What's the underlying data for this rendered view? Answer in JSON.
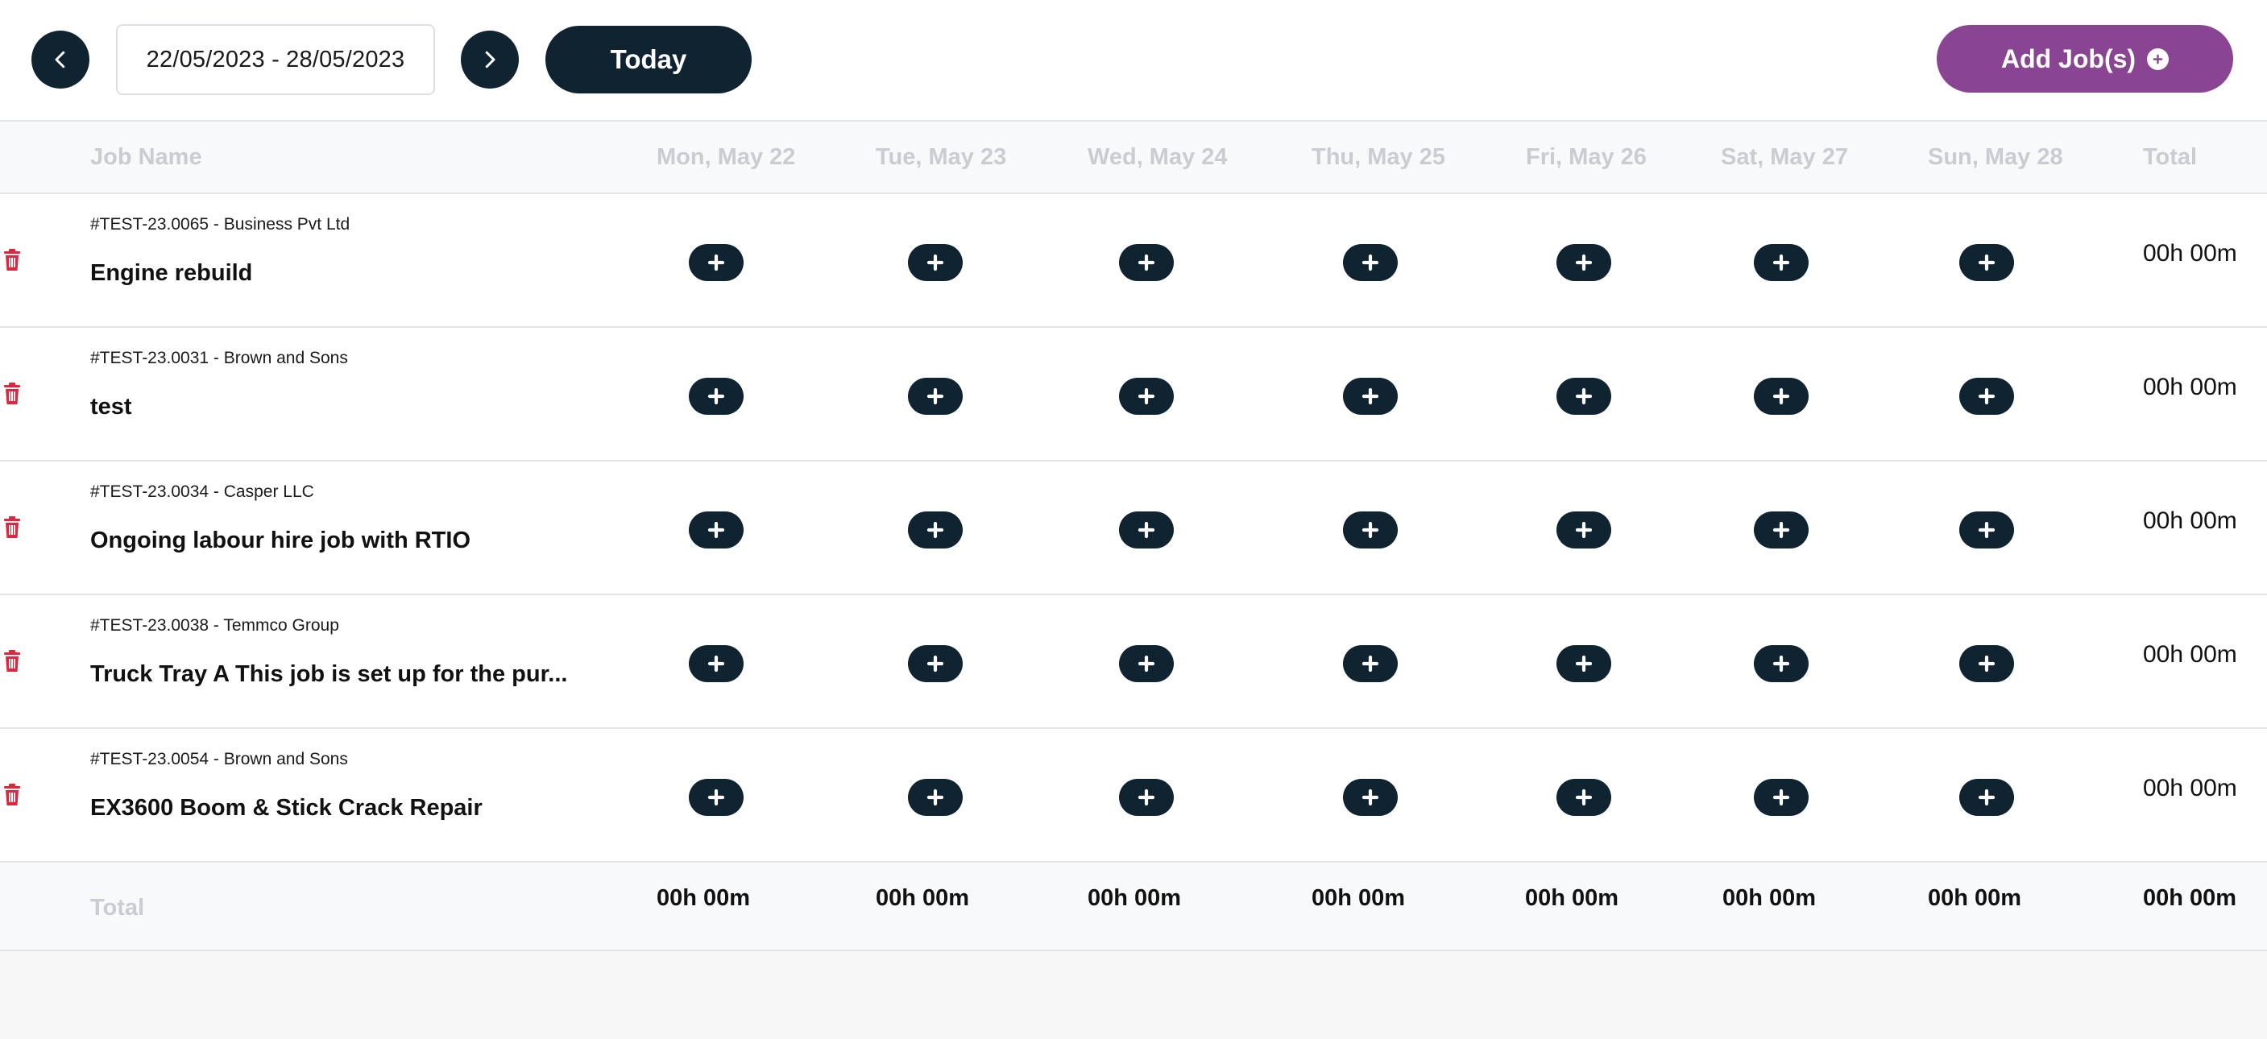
{
  "toolbar": {
    "prev_icon": "chevron-left-icon",
    "next_icon": "chevron-right-icon",
    "date_range": "22/05/2023 - 28/05/2023",
    "today_label": "Today",
    "add_jobs_label": "Add Job(s)",
    "add_jobs_icon": "plus-circle-icon"
  },
  "colors": {
    "primary_dark": "#0f2430",
    "accent_purple": "#8a4592",
    "delete_red": "#e0263d",
    "header_text": "#c9ccd1"
  },
  "table": {
    "headers": {
      "job_name": "Job Name",
      "days": [
        "Mon, May 22",
        "Tue, May 23",
        "Wed, May 24",
        "Thu, May 25",
        "Fri, May 26",
        "Sat, May 27",
        "Sun, May 28"
      ],
      "total": "Total"
    },
    "rows": [
      {
        "meta": "#TEST-23.0065 - Business Pvt Ltd",
        "title": "Engine rebuild",
        "total": "00h 00m"
      },
      {
        "meta": "#TEST-23.0031 - Brown and Sons",
        "title": "test",
        "total": "00h 00m"
      },
      {
        "meta": "#TEST-23.0034 - Casper LLC",
        "title": "Ongoing labour hire job with RTIO",
        "total": "00h 00m"
      },
      {
        "meta": "#TEST-23.0038 - Temmco Group",
        "title": "Truck Tray A This job is set up for the pur...",
        "total": "00h 00m"
      },
      {
        "meta": "#TEST-23.0054 - Brown and Sons",
        "title": "EX3600 Boom & Stick Crack Repair",
        "total": "00h 00m"
      }
    ],
    "totals": {
      "label": "Total",
      "days": [
        "00h 00m",
        "00h 00m",
        "00h 00m",
        "00h 00m",
        "00h 00m",
        "00h 00m",
        "00h 00m"
      ],
      "grand_total": "00h 00m"
    }
  }
}
